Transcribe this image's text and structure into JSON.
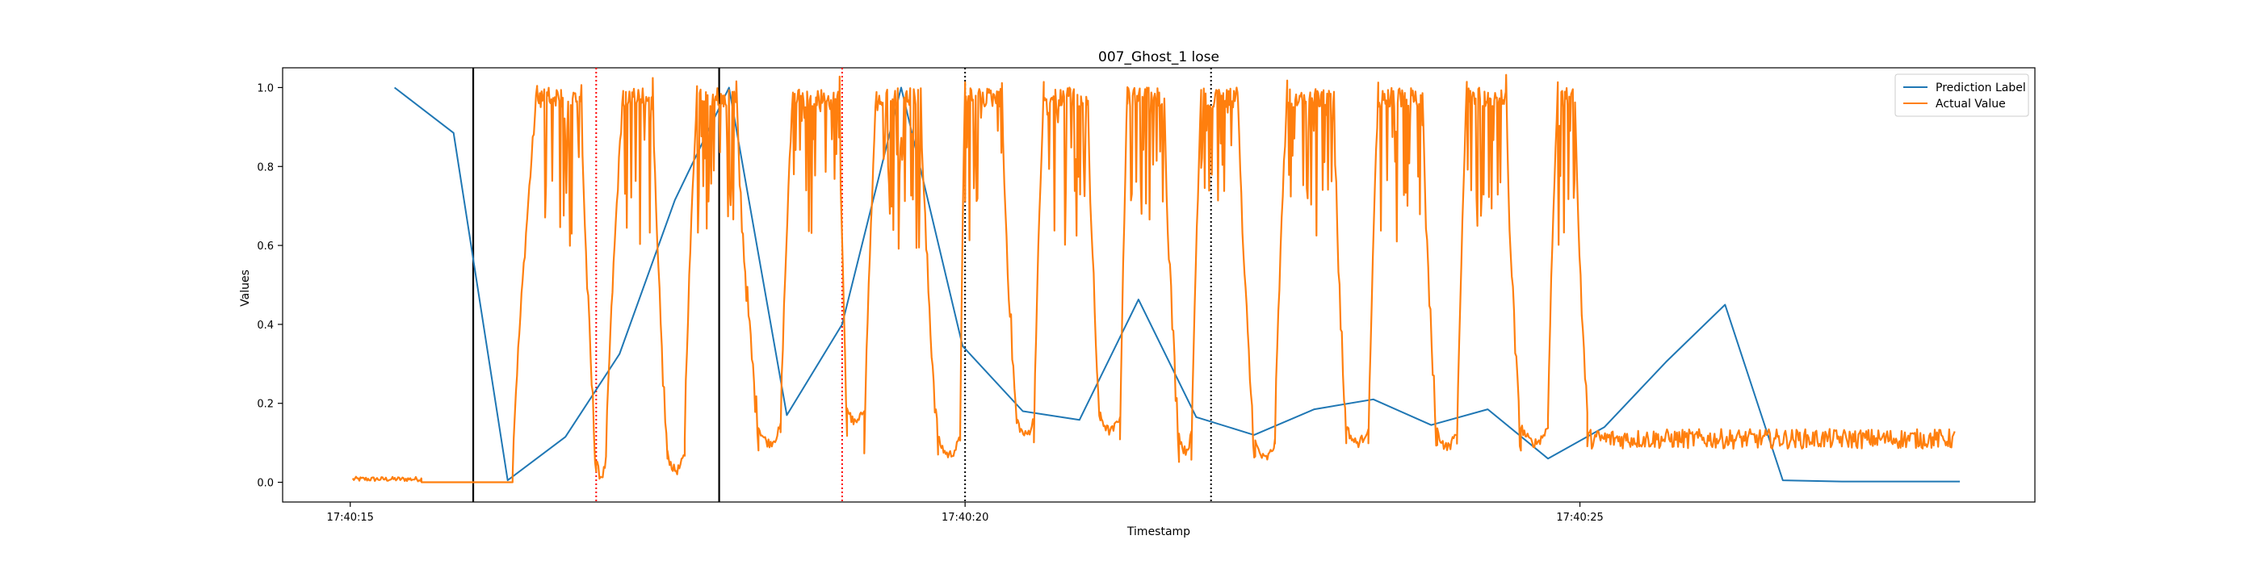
{
  "chart_data": {
    "type": "line",
    "title": "007_Ghost_1 lose",
    "xlabel": "Timestamp",
    "ylabel": "Values",
    "xlim": [
      -0.55,
      13.7
    ],
    "ylim": [
      -0.05,
      1.05
    ],
    "x_unit": "seconds after 17:40:15",
    "x_ticks": [
      {
        "value": 0,
        "label": "17:40:15"
      },
      {
        "value": 5,
        "label": "17:40:20"
      },
      {
        "value": 10,
        "label": "17:40:25"
      }
    ],
    "y_ticks": [
      {
        "value": 0.0,
        "label": "0.0"
      },
      {
        "value": 0.2,
        "label": "0.2"
      },
      {
        "value": 0.4,
        "label": "0.4"
      },
      {
        "value": 0.6,
        "label": "0.6"
      },
      {
        "value": 0.8,
        "label": "0.8"
      },
      {
        "value": 1.0,
        "label": "1.0"
      }
    ],
    "legend_position": "top-right",
    "grid": false,
    "series": [
      {
        "name": "Prediction Label",
        "color": "#1f77b4",
        "style": "smooth",
        "points": [
          [
            0.36,
            1.0
          ],
          [
            0.84,
            0.885
          ],
          [
            1.28,
            0.005
          ],
          [
            1.75,
            0.115
          ],
          [
            2.19,
            0.325
          ],
          [
            2.64,
            0.715
          ],
          [
            3.08,
            1.0
          ],
          [
            3.55,
            0.17
          ],
          [
            4.0,
            0.4
          ],
          [
            4.48,
            1.0
          ],
          [
            4.98,
            0.345
          ],
          [
            5.47,
            0.18
          ],
          [
            5.93,
            0.158
          ],
          [
            6.41,
            0.463
          ],
          [
            6.88,
            0.165
          ],
          [
            7.35,
            0.12
          ],
          [
            7.84,
            0.185
          ],
          [
            8.32,
            0.21
          ],
          [
            8.79,
            0.145
          ],
          [
            9.25,
            0.185
          ],
          [
            9.74,
            0.06
          ],
          [
            10.2,
            0.14
          ],
          [
            10.7,
            0.305
          ],
          [
            11.18,
            0.45
          ],
          [
            11.65,
            0.005
          ],
          [
            12.13,
            0.002
          ],
          [
            12.61,
            0.002
          ],
          [
            13.09,
            0.002
          ]
        ]
      },
      {
        "name": "Actual Value",
        "color": "#ff7f0e",
        "style": "noisy",
        "segments": [
          {
            "kind": "noise",
            "x": [
              0.02,
              0.58
            ],
            "level": 0.008,
            "amp": 0.006
          },
          {
            "kind": "flat",
            "x": [
              0.58,
              1.32
            ],
            "level": 0.0
          },
          {
            "kind": "pulse",
            "rise": [
              1.32,
              1.52
            ],
            "top": [
              1.52,
              1.88
            ],
            "fall": [
              1.88,
              2.0
            ],
            "low": 0.035,
            "lowEnd": 2.0
          },
          {
            "kind": "dip",
            "x": [
              2.0,
              2.08
            ],
            "level": 0.015
          },
          {
            "kind": "pulse",
            "rise": [
              2.08,
              2.22
            ],
            "top": [
              2.22,
              2.46
            ],
            "fall": [
              2.46,
              2.58
            ],
            "low": 0.06,
            "lowEnd": 2.58
          },
          {
            "kind": "dip",
            "x": [
              2.58,
              2.72
            ],
            "level": 0.03
          },
          {
            "kind": "pulse",
            "rise": [
              2.72,
              2.82
            ],
            "top": [
              2.82,
              3.14
            ],
            "fall": [
              3.14,
              3.32
            ],
            "low": 0.12,
            "lowEnd": 3.32
          },
          {
            "kind": "dip",
            "x": [
              3.32,
              3.5
            ],
            "level": 0.1
          },
          {
            "kind": "pulse",
            "rise": [
              3.5,
              3.6
            ],
            "top": [
              3.6,
              3.98
            ],
            "fall": [
              3.98,
              4.04
            ],
            "low": 0.13,
            "lowEnd": 4.04
          },
          {
            "kind": "dip",
            "x": [
              4.04,
              4.18
            ],
            "level": 0.15
          },
          {
            "kind": "pulse",
            "rise": [
              4.18,
              4.28
            ],
            "top": [
              4.28,
              4.64
            ],
            "fall": [
              4.64,
              4.78
            ],
            "low": 0.09,
            "lowEnd": 4.78
          },
          {
            "kind": "dip",
            "x": [
              4.78,
              4.96
            ],
            "level": 0.07
          },
          {
            "kind": "pulse",
            "rise": [
              4.96,
              5.0
            ],
            "top": [
              5.0,
              5.3
            ],
            "fall": [
              5.3,
              5.42
            ],
            "low": 0.14,
            "lowEnd": 5.42
          },
          {
            "kind": "dip",
            "x": [
              5.42,
              5.56
            ],
            "level": 0.12
          },
          {
            "kind": "pulse",
            "rise": [
              5.56,
              5.64
            ],
            "top": [
              5.64,
              6.0
            ],
            "fall": [
              6.0,
              6.1
            ],
            "low": 0.12,
            "lowEnd": 6.1
          },
          {
            "kind": "dip",
            "x": [
              6.1,
              6.26
            ],
            "level": 0.13
          },
          {
            "kind": "pulse",
            "rise": [
              6.26,
              6.32
            ],
            "top": [
              6.32,
              6.62
            ],
            "fall": [
              6.62,
              6.74
            ],
            "low": 0.09,
            "lowEnd": 6.74
          },
          {
            "kind": "dip",
            "x": [
              6.74,
              6.84
            ],
            "level": 0.08
          },
          {
            "kind": "pulse",
            "rise": [
              6.84,
              6.92
            ],
            "top": [
              6.92,
              7.22
            ],
            "fall": [
              7.22,
              7.36
            ],
            "low": 0.05,
            "lowEnd": 7.36
          },
          {
            "kind": "dip",
            "x": [
              7.36,
              7.52
            ],
            "level": 0.06
          },
          {
            "kind": "pulse",
            "rise": [
              7.52,
              7.62
            ],
            "top": [
              7.62,
              8.0
            ],
            "fall": [
              8.0,
              8.1
            ],
            "low": 0.11,
            "lowEnd": 8.1
          },
          {
            "kind": "dip",
            "x": [
              8.1,
              8.28
            ],
            "level": 0.1
          },
          {
            "kind": "pulse",
            "rise": [
              8.28,
              8.36
            ],
            "top": [
              8.36,
              8.72
            ],
            "fall": [
              8.72,
              8.84
            ],
            "low": 0.08,
            "lowEnd": 8.84
          },
          {
            "kind": "dip",
            "x": [
              8.84,
              9.0
            ],
            "level": 0.09
          },
          {
            "kind": "pulse",
            "rise": [
              9.0,
              9.08
            ],
            "top": [
              9.08,
              9.4
            ],
            "fall": [
              9.4,
              9.52
            ],
            "low": 0.08,
            "lowEnd": 9.52
          },
          {
            "kind": "dip",
            "x": [
              9.52,
              9.74
            ],
            "level": 0.1
          },
          {
            "kind": "pulse",
            "rise": [
              9.74,
              9.82
            ],
            "top": [
              9.82,
              9.96
            ],
            "fall": [
              9.96,
              10.06
            ],
            "low": 0.16,
            "lowEnd": 10.06
          },
          {
            "kind": "noise",
            "x": [
              10.06,
              13.05
            ],
            "level": 0.11,
            "amp": 0.025
          }
        ]
      }
    ],
    "vlines": [
      {
        "x": 1.0,
        "style": "solid",
        "color": "#000000"
      },
      {
        "x": 3.0,
        "style": "solid",
        "color": "#000000"
      },
      {
        "x": 2.0,
        "style": "dotted",
        "color": "#ff0000"
      },
      {
        "x": 4.0,
        "style": "dotted",
        "color": "#ff0000"
      },
      {
        "x": 5.0,
        "style": "dotted",
        "color": "#000000"
      },
      {
        "x": 7.0,
        "style": "dotted",
        "color": "#000000"
      }
    ]
  }
}
